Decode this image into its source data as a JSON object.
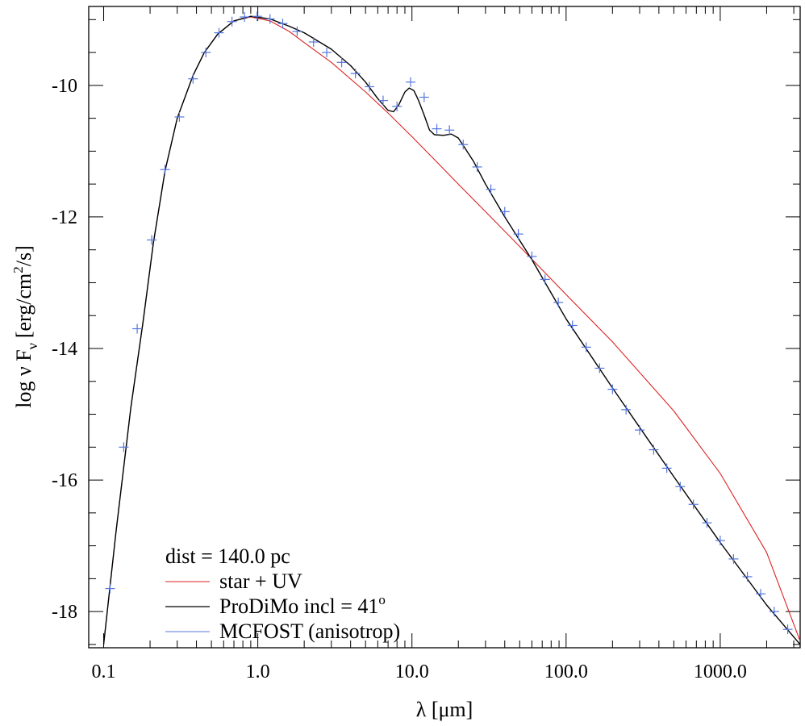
{
  "chart_data": {
    "type": "line",
    "xlabel_symbol": "λ",
    "xlabel_unit": "[μm]",
    "ylabel_prefix": "log ν F",
    "ylabel_sub": "ν",
    "ylabel_unit_a": "[erg/cm",
    "ylabel_unit_sup": "2",
    "ylabel_unit_b": "/s]",
    "x_scale": "log",
    "xlim": [
      0.08,
      3300
    ],
    "ylim": [
      -18.55,
      -8.8
    ],
    "x_ticks": [
      {
        "value": 0.1,
        "label": "0.1"
      },
      {
        "value": 1.0,
        "label": "1.0"
      },
      {
        "value": 10.0,
        "label": "10.0"
      },
      {
        "value": 100.0,
        "label": "100.0"
      },
      {
        "value": 1000.0,
        "label": "1000.0"
      }
    ],
    "y_ticks": [
      {
        "value": -10,
        "label": "-10"
      },
      {
        "value": -12,
        "label": "-12"
      },
      {
        "value": -14,
        "label": "-14"
      },
      {
        "value": -16,
        "label": "-16"
      },
      {
        "value": -18,
        "label": "-18"
      }
    ],
    "legend": {
      "position": "bottom-left",
      "header": "dist = 140.0 pc",
      "entries": [
        {
          "label": "star + UV",
          "color": "#dd2222",
          "style": "line"
        },
        {
          "label": "ProDiMo incl = 41",
          "degree": "o",
          "color": "#000000",
          "style": "line"
        },
        {
          "label": "MCFOST (anisotrop)",
          "color": "#5577dd",
          "style": "line"
        }
      ]
    },
    "series": [
      {
        "name": "star + UV",
        "color": "#dd2222",
        "points": [
          [
            0.1,
            -18.5
          ],
          [
            0.12,
            -16.8
          ],
          [
            0.15,
            -14.9
          ],
          [
            0.18,
            -13.6
          ],
          [
            0.21,
            -12.4
          ],
          [
            0.25,
            -11.3
          ],
          [
            0.3,
            -10.5
          ],
          [
            0.38,
            -9.85
          ],
          [
            0.45,
            -9.5
          ],
          [
            0.55,
            -9.22
          ],
          [
            0.7,
            -9.02
          ],
          [
            0.9,
            -8.96
          ],
          [
            1.2,
            -9.02
          ],
          [
            1.6,
            -9.18
          ],
          [
            2.0,
            -9.35
          ],
          [
            3.0,
            -9.65
          ],
          [
            5.0,
            -10.1
          ],
          [
            7.0,
            -10.42
          ],
          [
            10.0,
            -10.78
          ],
          [
            15.0,
            -11.2
          ],
          [
            20.0,
            -11.5
          ],
          [
            30.0,
            -11.92
          ],
          [
            50.0,
            -12.45
          ],
          [
            100.0,
            -13.18
          ],
          [
            200.0,
            -13.9
          ],
          [
            500.0,
            -14.95
          ],
          [
            1000.0,
            -15.9
          ],
          [
            2000.0,
            -17.1
          ],
          [
            3300.0,
            -18.45
          ]
        ]
      },
      {
        "name": "ProDiMo incl = 41°",
        "color": "#000000",
        "points": [
          [
            0.1,
            -18.5
          ],
          [
            0.12,
            -16.8
          ],
          [
            0.15,
            -14.9
          ],
          [
            0.18,
            -13.6
          ],
          [
            0.21,
            -12.4
          ],
          [
            0.25,
            -11.3
          ],
          [
            0.3,
            -10.5
          ],
          [
            0.38,
            -9.85
          ],
          [
            0.45,
            -9.5
          ],
          [
            0.55,
            -9.22
          ],
          [
            0.7,
            -9.02
          ],
          [
            0.9,
            -8.95
          ],
          [
            1.2,
            -8.99
          ],
          [
            1.6,
            -9.1
          ],
          [
            2.0,
            -9.2
          ],
          [
            3.0,
            -9.45
          ],
          [
            4.0,
            -9.7
          ],
          [
            5.0,
            -9.95
          ],
          [
            6.0,
            -10.2
          ],
          [
            7.0,
            -10.38
          ],
          [
            7.6,
            -10.4
          ],
          [
            8.2,
            -10.3
          ],
          [
            9.0,
            -10.1
          ],
          [
            9.6,
            -10.04
          ],
          [
            10.3,
            -10.08
          ],
          [
            11.0,
            -10.22
          ],
          [
            12.0,
            -10.45
          ],
          [
            13.0,
            -10.68
          ],
          [
            14.0,
            -10.75
          ],
          [
            16.0,
            -10.76
          ],
          [
            18.0,
            -10.74
          ],
          [
            20.0,
            -10.8
          ],
          [
            22.0,
            -10.95
          ],
          [
            25.0,
            -11.15
          ],
          [
            30.0,
            -11.5
          ],
          [
            40.0,
            -12.0
          ],
          [
            60.0,
            -12.65
          ],
          [
            100.0,
            -13.55
          ],
          [
            200.0,
            -14.6
          ],
          [
            300.0,
            -15.2
          ],
          [
            500.0,
            -15.95
          ],
          [
            1000.0,
            -16.95
          ],
          [
            2000.0,
            -17.9
          ],
          [
            3300.0,
            -18.5
          ]
        ]
      },
      {
        "name": "MCFOST (anisotrop)",
        "color": "#5577dd",
        "marker": "+",
        "points": [
          [
            0.11,
            -17.65
          ],
          [
            0.135,
            -15.5
          ],
          [
            0.165,
            -13.7
          ],
          [
            0.205,
            -12.35
          ],
          [
            0.25,
            -11.28
          ],
          [
            0.31,
            -10.48
          ],
          [
            0.38,
            -9.9
          ],
          [
            0.46,
            -9.5
          ],
          [
            0.56,
            -9.2
          ],
          [
            0.68,
            -9.03
          ],
          [
            0.82,
            -8.96
          ],
          [
            0.99,
            -8.95
          ],
          [
            1.2,
            -8.99
          ],
          [
            1.45,
            -9.06
          ],
          [
            1.8,
            -9.18
          ],
          [
            2.3,
            -9.34
          ],
          [
            2.8,
            -9.5
          ],
          [
            3.5,
            -9.65
          ],
          [
            4.3,
            -9.82
          ],
          [
            5.3,
            -10.02
          ],
          [
            6.5,
            -10.23
          ],
          [
            8.0,
            -10.32
          ],
          [
            9.8,
            -9.95
          ],
          [
            12.0,
            -10.18
          ],
          [
            14.5,
            -10.66
          ],
          [
            17.5,
            -10.68
          ],
          [
            21.5,
            -10.9
          ],
          [
            26.5,
            -11.24
          ],
          [
            32.5,
            -11.58
          ],
          [
            40.0,
            -11.92
          ],
          [
            49.0,
            -12.26
          ],
          [
            60.0,
            -12.6
          ],
          [
            73.0,
            -12.95
          ],
          [
            89.0,
            -13.3
          ],
          [
            110.0,
            -13.65
          ],
          [
            135.0,
            -13.98
          ],
          [
            165.0,
            -14.3
          ],
          [
            200.0,
            -14.62
          ],
          [
            245.0,
            -14.93
          ],
          [
            300.0,
            -15.24
          ],
          [
            370.0,
            -15.54
          ],
          [
            450.0,
            -15.82
          ],
          [
            550.0,
            -16.1
          ],
          [
            670.0,
            -16.37
          ],
          [
            820.0,
            -16.65
          ],
          [
            1000.0,
            -16.92
          ],
          [
            1220.0,
            -17.2
          ],
          [
            1500.0,
            -17.47
          ],
          [
            1830.0,
            -17.73
          ],
          [
            2240.0,
            -18.0
          ],
          [
            2740.0,
            -18.27
          ]
        ]
      }
    ]
  }
}
